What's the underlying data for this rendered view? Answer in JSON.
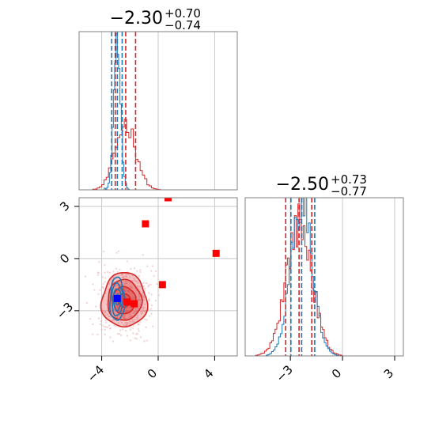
{
  "chart_data": {
    "type": "corner",
    "titles": [
      {
        "value": "−2.30",
        "plus": "+0.70",
        "minus": "−0.74"
      },
      {
        "value": "−2.50",
        "plus": "+0.73",
        "minus": "−0.77"
      }
    ],
    "colors": {
      "red": "#d62728",
      "blue": "#1f77b4",
      "marker_red": "#ff0000",
      "marker_blue": "#0000ff",
      "grid": "#c8c8c8",
      "frame": "#808080"
    },
    "grid": true,
    "axes": {
      "x1": {
        "range": [
          -5.6,
          5.6
        ],
        "ticks": [
          -4,
          0,
          4
        ],
        "tick_labels": [
          "−4",
          "0",
          "4"
        ]
      },
      "y2": {
        "range": [
          -5.6,
          3.5
        ],
        "ticks": [
          -3,
          0,
          3
        ],
        "tick_labels": [
          "−3",
          "0",
          "3"
        ]
      },
      "x2": {
        "range": [
          -5.6,
          3.5
        ],
        "ticks": [
          -3,
          0,
          3
        ],
        "tick_labels": [
          "−3",
          "0",
          "3"
        ]
      }
    },
    "marginal_1": {
      "red_quantiles": [
        -3.04,
        -2.3,
        -1.6
      ],
      "blue_quantiles": [
        -3.29,
        -2.89,
        -2.55
      ],
      "red_hist": {
        "mean": -2.3,
        "sd": 0.72,
        "peak": 0.42
      },
      "blue_hist": {
        "mean": -2.9,
        "sd": 0.24,
        "peak": 0.97
      }
    },
    "marginal_2": {
      "red_quantiles": [
        -3.27,
        -2.5,
        -1.77
      ],
      "blue_quantiles": [
        -2.97,
        -2.35,
        -1.6
      ],
      "red_hist": {
        "mean": -2.5,
        "sd": 0.75,
        "peak": 0.83
      },
      "blue_hist": {
        "mean": -2.35,
        "sd": 0.62,
        "peak": 0.96
      }
    },
    "joint": {
      "red_contour": {
        "center": [
          -2.4,
          -2.4
        ],
        "sx": 0.8,
        "sy": 0.78
      },
      "blue_contour": {
        "center": [
          -2.9,
          -2.35
        ],
        "sx": 0.26,
        "sy": 0.62
      },
      "red_markers": [
        [
          0.7,
          3.5
        ],
        [
          -0.9,
          2.0
        ],
        [
          4.1,
          0.3
        ],
        [
          0.3,
          -1.5
        ],
        [
          -2.2,
          -2.5
        ],
        [
          -1.7,
          -2.6
        ]
      ],
      "blue_markers": [
        [
          -2.9,
          -2.3
        ]
      ]
    }
  }
}
